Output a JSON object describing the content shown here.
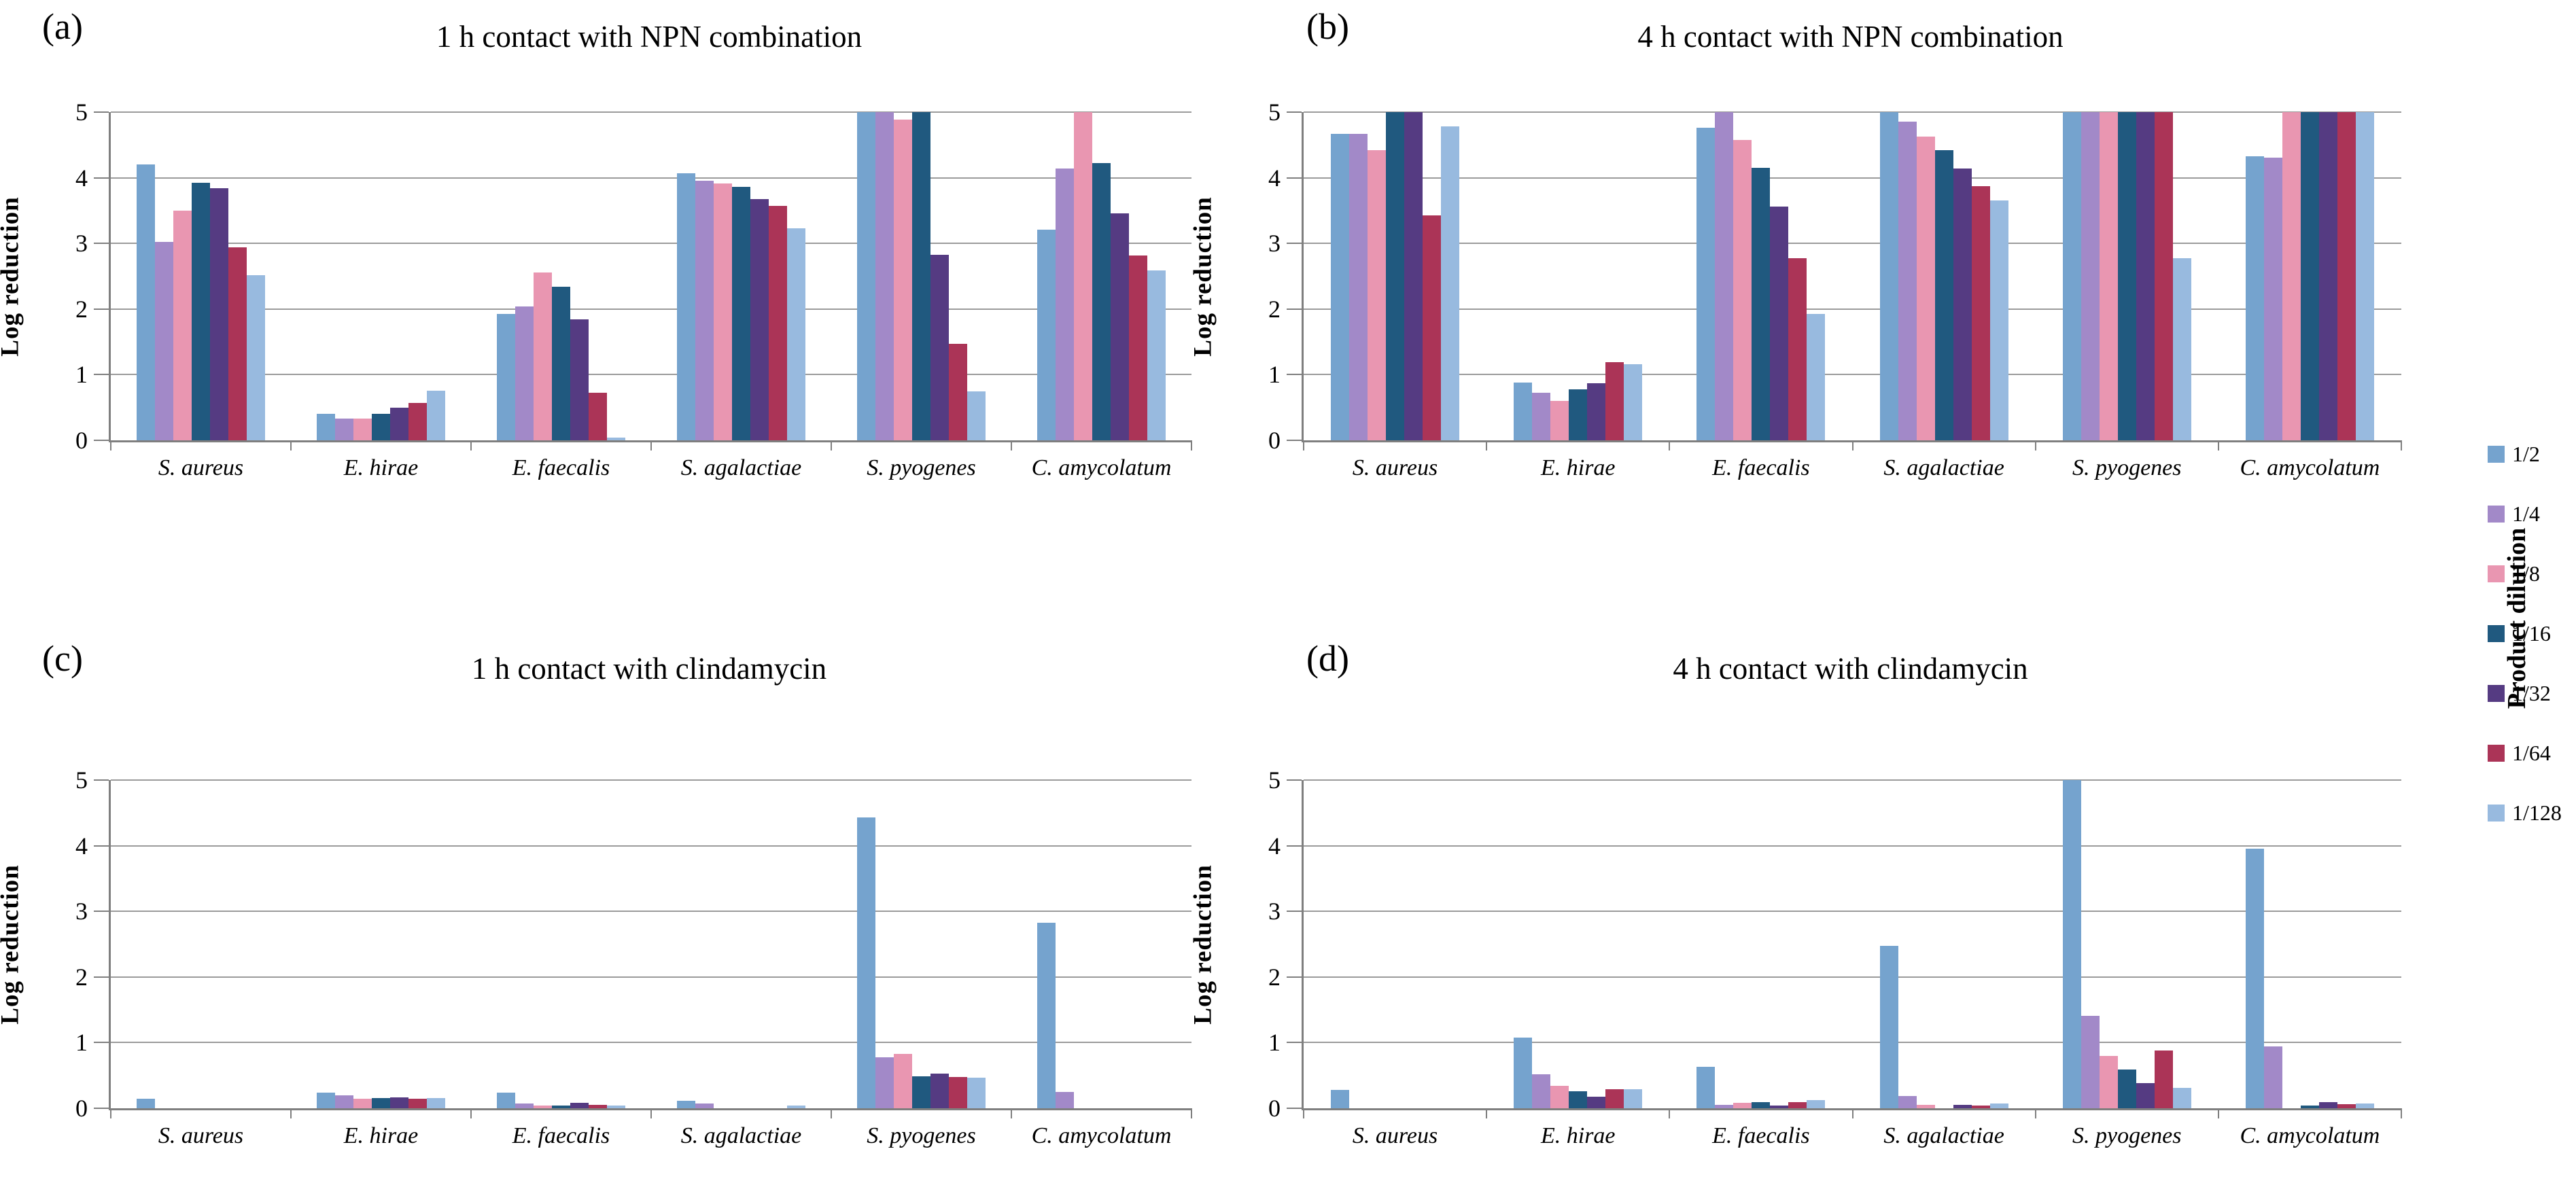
{
  "legend": {
    "title": "Product dilution",
    "entries": [
      {
        "label": "1/2",
        "color": "#75A3CE"
      },
      {
        "label": "1/4",
        "color": "#A289C8"
      },
      {
        "label": "1/8",
        "color": "#E996B1"
      },
      {
        "label": "1/16",
        "color": "#20597F"
      },
      {
        "label": "1/32",
        "color": "#553B82"
      },
      {
        "label": "1/64",
        "color": "#AB3457"
      },
      {
        "label": "1/128",
        "color": "#98BADF"
      }
    ]
  },
  "chart_data": [
    {
      "type": "bar",
      "panel_label": "(a)",
      "title": "1 h contact with NPN combination",
      "ylabel": "Log reduction",
      "ylim": [
        0,
        5
      ],
      "yticks": [
        0,
        1,
        2,
        3,
        4,
        5
      ],
      "grid": "horizontal",
      "legend_position": "figure-right",
      "categories": [
        "S. aureus",
        "E. hirae",
        "E. faecalis",
        "S. agalactiae",
        "S. pyogenes",
        "C. amycolatum"
      ],
      "series": [
        {
          "name": "1/2",
          "values": [
            4.2,
            0.4,
            1.93,
            4.07,
            5.0,
            3.21
          ]
        },
        {
          "name": "1/4",
          "values": [
            3.02,
            0.33,
            2.04,
            3.95,
            5.0,
            4.14
          ]
        },
        {
          "name": "1/8",
          "values": [
            3.5,
            0.33,
            2.56,
            3.91,
            4.89,
            5.0
          ]
        },
        {
          "name": "1/16",
          "values": [
            3.92,
            0.4,
            2.34,
            3.86,
            5.0,
            4.22
          ]
        },
        {
          "name": "1/32",
          "values": [
            3.84,
            0.5,
            1.84,
            3.67,
            2.83,
            3.46
          ]
        },
        {
          "name": "1/64",
          "values": [
            2.94,
            0.57,
            0.72,
            3.57,
            1.47,
            2.82
          ]
        },
        {
          "name": "1/128",
          "values": [
            2.52,
            0.76,
            0.04,
            3.23,
            0.75,
            2.59
          ]
        }
      ]
    },
    {
      "type": "bar",
      "panel_label": "(b)",
      "title": "4 h contact with NPN combination",
      "ylabel": "Log reduction",
      "ylim": [
        0,
        5
      ],
      "yticks": [
        0,
        1,
        2,
        3,
        4,
        5
      ],
      "grid": "horizontal",
      "legend_position": "figure-right",
      "categories": [
        "S. aureus",
        "E. hirae",
        "E. faecalis",
        "S. agalactiae",
        "S. pyogenes",
        "C. amycolatum"
      ],
      "series": [
        {
          "name": "1/2",
          "values": [
            4.67,
            0.88,
            4.76,
            5.0,
            5.0,
            4.33
          ]
        },
        {
          "name": "1/4",
          "values": [
            4.67,
            0.72,
            5.0,
            4.86,
            5.0,
            4.31
          ]
        },
        {
          "name": "1/8",
          "values": [
            4.42,
            0.6,
            4.58,
            4.63,
            5.0,
            5.0
          ]
        },
        {
          "name": "1/16",
          "values": [
            5.0,
            0.78,
            4.15,
            4.42,
            5.0,
            5.0
          ]
        },
        {
          "name": "1/32",
          "values": [
            5.0,
            0.87,
            3.56,
            4.14,
            5.0,
            5.0
          ]
        },
        {
          "name": "1/64",
          "values": [
            3.43,
            1.19,
            2.77,
            3.87,
            5.0,
            5.0
          ]
        },
        {
          "name": "1/128",
          "values": [
            4.78,
            1.16,
            1.93,
            3.65,
            2.77,
            5.0
          ]
        }
      ]
    },
    {
      "type": "bar",
      "panel_label": "(c)",
      "title": "1 h contact with clindamycin",
      "ylabel": "Log reduction",
      "ylim": [
        0,
        5
      ],
      "yticks": [
        0,
        1,
        2,
        3,
        4,
        5
      ],
      "grid": "horizontal",
      "legend_position": "figure-right",
      "categories": [
        "S. aureus",
        "E. hirae",
        "E. faecalis",
        "S. agalactiae",
        "S. pyogenes",
        "C. amycolatum"
      ],
      "series": [
        {
          "name": "1/2",
          "values": [
            0.15,
            0.24,
            0.24,
            0.11,
            4.43,
            2.83
          ]
        },
        {
          "name": "1/4",
          "values": [
            0.0,
            0.2,
            0.07,
            0.07,
            0.78,
            0.25
          ]
        },
        {
          "name": "1/8",
          "values": [
            0.0,
            0.15,
            0.04,
            0.0,
            0.83,
            0.0
          ]
        },
        {
          "name": "1/16",
          "values": [
            0.0,
            0.16,
            0.04,
            0.0,
            0.49,
            0.0
          ]
        },
        {
          "name": "1/32",
          "values": [
            0.0,
            0.17,
            0.08,
            0.0,
            0.53,
            0.0
          ]
        },
        {
          "name": "1/64",
          "values": [
            0.0,
            0.14,
            0.05,
            0.0,
            0.48,
            0.0
          ]
        },
        {
          "name": "1/128",
          "values": [
            0.0,
            0.16,
            0.04,
            0.04,
            0.47,
            0.0
          ]
        }
      ]
    },
    {
      "type": "bar",
      "panel_label": "(d)",
      "title": "4 h contact with clindamycin",
      "ylabel": "Log reduction",
      "ylim": [
        0,
        5
      ],
      "yticks": [
        0,
        1,
        2,
        3,
        4,
        5
      ],
      "grid": "horizontal",
      "legend_position": "figure-right",
      "categories": [
        "S. aureus",
        "E. hirae",
        "E. faecalis",
        "S. agalactiae",
        "S. pyogenes",
        "C. amycolatum"
      ],
      "series": [
        {
          "name": "1/2",
          "values": [
            0.28,
            1.08,
            0.63,
            2.47,
            5.0,
            3.95
          ]
        },
        {
          "name": "1/4",
          "values": [
            0.0,
            0.52,
            0.05,
            0.19,
            1.41,
            0.94
          ]
        },
        {
          "name": "1/8",
          "values": [
            0.0,
            0.34,
            0.08,
            0.05,
            0.8,
            0.0
          ]
        },
        {
          "name": "1/16",
          "values": [
            0.0,
            0.26,
            0.09,
            0.0,
            0.59,
            0.04
          ]
        },
        {
          "name": "1/32",
          "values": [
            0.0,
            0.18,
            0.04,
            0.05,
            0.38,
            0.09
          ]
        },
        {
          "name": "1/64",
          "values": [
            0.0,
            0.29,
            0.09,
            0.04,
            0.88,
            0.06
          ]
        },
        {
          "name": "1/128",
          "values": [
            0.0,
            0.29,
            0.12,
            0.07,
            0.31,
            0.07
          ]
        }
      ]
    }
  ]
}
